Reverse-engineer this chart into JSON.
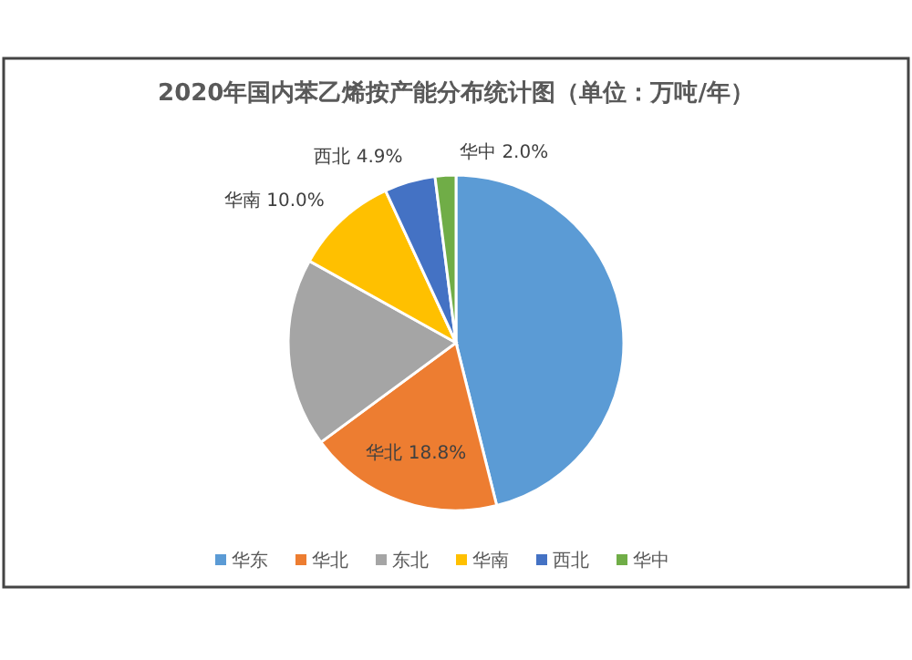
{
  "chart_data": {
    "type": "pie",
    "title": "2020年国内苯乙烯按产能分布统计图（单位：万吨/年）",
    "categories": [
      "华东",
      "华北",
      "东北",
      "华南",
      "西北",
      "华中"
    ],
    "values": [
      46.1,
      18.8,
      18.2,
      10.0,
      4.9,
      2.0
    ],
    "value_labels": [
      null,
      "18.8%",
      null,
      "10.0%",
      "4.9%",
      "2.0%"
    ],
    "colors": [
      "#5b9bd5",
      "#ed7d31",
      "#a5a5a5",
      "#ffc000",
      "#4472c4",
      "#70ad47"
    ],
    "legend": "bottom"
  }
}
